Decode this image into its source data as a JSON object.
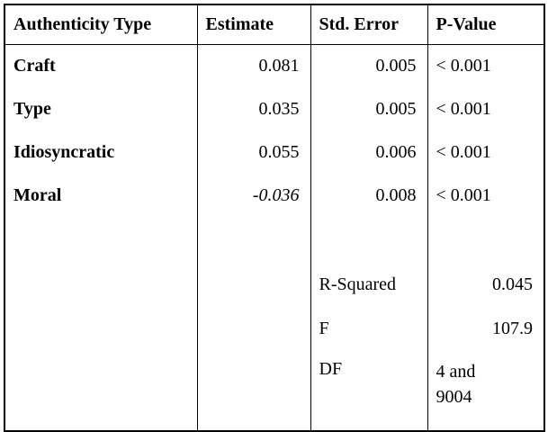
{
  "colors": {
    "background": "#ffffff",
    "text": "#000000",
    "border": "#000000"
  },
  "table": {
    "headers": [
      "Authenticity Type",
      "Estimate",
      "Std. Error",
      "P-Value"
    ],
    "rows": [
      {
        "label": "Craft",
        "estimate": "0.081",
        "std_error": "0.005",
        "p_value": "< 0.001",
        "estimate_style": "normal"
      },
      {
        "label": "Type",
        "estimate": "0.035",
        "std_error": "0.005",
        "p_value": "< 0.001",
        "estimate_style": "normal"
      },
      {
        "label": "Idiosyncratic",
        "estimate": "0.055",
        "std_error": "0.006",
        "p_value": "< 0.001",
        "estimate_style": "normal"
      },
      {
        "label": "Moral",
        "estimate": "-0.036",
        "std_error": "0.008",
        "p_value": "< 0.001",
        "estimate_style": "italic"
      }
    ],
    "stats": [
      {
        "label": "R-Squared",
        "value": "0.045"
      },
      {
        "label": "F",
        "value": "107.9"
      },
      {
        "label": "DF",
        "value": "4 and\n9004"
      }
    ]
  },
  "chart_data": {
    "type": "table",
    "columns": [
      "Authenticity Type",
      "Estimate",
      "Std. Error",
      "P-Value"
    ],
    "rows": [
      [
        "Craft",
        0.081,
        0.005,
        "< 0.001"
      ],
      [
        "Type",
        0.035,
        0.005,
        "< 0.001"
      ],
      [
        "Idiosyncratic",
        0.055,
        0.006,
        "< 0.001"
      ],
      [
        "Moral",
        -0.036,
        0.008,
        "< 0.001"
      ]
    ],
    "footer_stats": {
      "R-Squared": 0.045,
      "F": 107.9,
      "DF": "4 and 9004"
    }
  }
}
